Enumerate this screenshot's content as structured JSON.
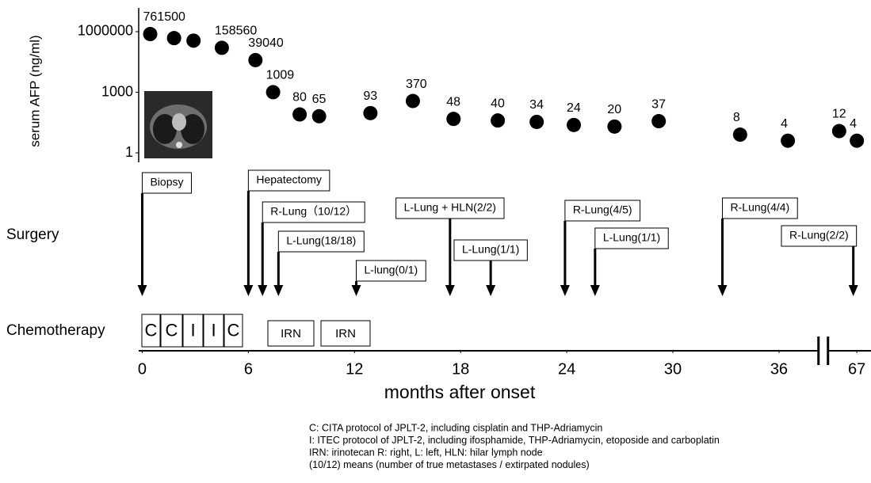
{
  "chart_data": {
    "type": "scatter",
    "y_label": "serum AFP (ng/ml)",
    "x_label": "months after onset",
    "y_scale": "log",
    "ylim": [
      0.34,
      15000000
    ],
    "yticks": [
      1,
      1000,
      1000000
    ],
    "xlim": [
      -0.2,
      67.8
    ],
    "x_break": [
      38.5,
      65.1
    ],
    "xticks": [
      0,
      6,
      12,
      18,
      24,
      30,
      36,
      67
    ],
    "series": [
      {
        "color": "#000000",
        "show_labels": true,
        "x": [
          0.45,
          4.5,
          6.4,
          7.4,
          8.9,
          10.0,
          12.9,
          15.3,
          17.6,
          20.1,
          22.3,
          24.4,
          26.7,
          29.2,
          33.8,
          36.5,
          66.0,
          67.0
        ],
        "values": [
          761500,
          158560,
          39040,
          1009,
          80,
          65,
          93,
          370,
          48,
          40,
          34,
          24,
          20,
          37,
          8,
          4,
          12,
          4
        ]
      },
      {
        "color": "#000000",
        "show_labels": false,
        "x": [
          1.8,
          2.9
        ],
        "values": [
          480000,
          360000
        ]
      }
    ],
    "surgery": {
      "label": "Surgery",
      "events": [
        {
          "month": 0,
          "label": "Biopsy"
        },
        {
          "month": 6,
          "label": "Hepatectomy"
        },
        {
          "month": 6.8,
          "label": "R-Lung（10/12）"
        },
        {
          "month": 7.7,
          "label": "L-Lung(18/18)"
        },
        {
          "month": 12.1,
          "label": "L-lung(0/1)"
        },
        {
          "month": 17.4,
          "label": "L-Lung + HLN(2/2)"
        },
        {
          "month": 19.7,
          "label": "L-Lung(1/1)"
        },
        {
          "month": 23.9,
          "label": "R-Lung(4/5)"
        },
        {
          "month": 25.6,
          "label": "L-Lung(1/1)"
        },
        {
          "month": 32.8,
          "label": "R-Lung(4/4)"
        },
        {
          "month": 66.8,
          "label": "R-Lung(2/2)"
        }
      ]
    },
    "chemotherapy": {
      "label": "Chemotherapy",
      "courses": [
        "C",
        "C",
        "I",
        "I",
        "C",
        "IRN",
        "IRN"
      ]
    },
    "notes": [
      "C: CITA protocol of JPLT-2, including cisplatin and THP-Adriamycin",
      "I: ITEC protocol of JPLT-2, including ifosphamide, THP-Adriamycin, etoposide and carboplatin",
      "IRN:  irinotecan  R: right, L: left, HLN:  hilar lymph node",
      "(10/12) means (number of true metastases / extirpated nodules)"
    ]
  }
}
